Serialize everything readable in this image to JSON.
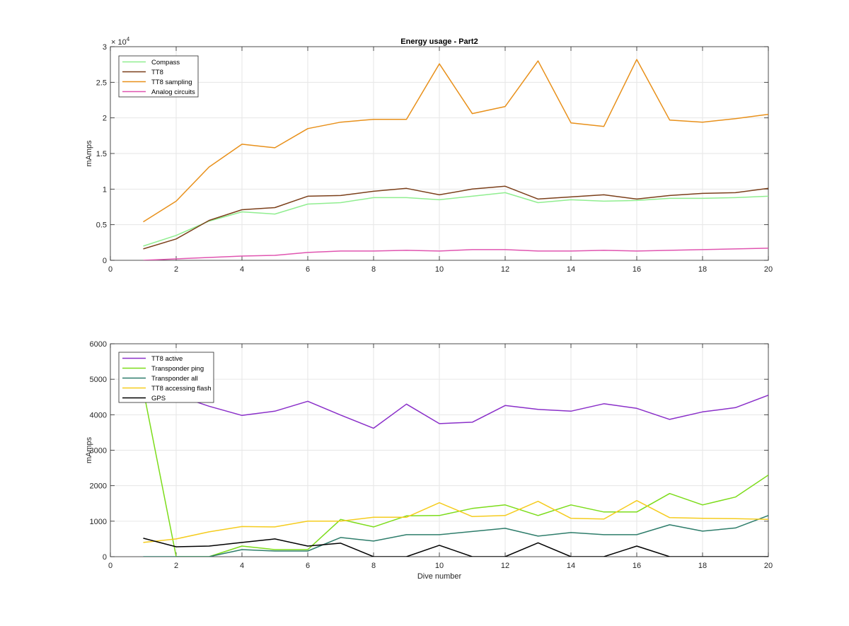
{
  "chart_data": [
    {
      "type": "line",
      "title": "Energy usage - Part2",
      "xlabel": "",
      "ylabel": "mAmps",
      "y_exponent_label": "×10^4",
      "y_exponent_base": "× 10",
      "y_exponent_power": "4",
      "xlim": [
        0,
        20
      ],
      "ylim": [
        0,
        3
      ],
      "xticks": [
        "0",
        "2",
        "4",
        "6",
        "8",
        "10",
        "12",
        "14",
        "16",
        "18",
        "20"
      ],
      "yticks": [
        "0",
        "0.5",
        "1",
        "1.5",
        "2",
        "2.5",
        "3"
      ],
      "grid": true,
      "legend_position": "top-left",
      "x": [
        1,
        2,
        3,
        4,
        5,
        6,
        7,
        8,
        9,
        10,
        11,
        12,
        13,
        14,
        15,
        16,
        17,
        18,
        19,
        20
      ],
      "series": [
        {
          "name": "Compass",
          "color": "#90ee90",
          "values": [
            0.2,
            0.35,
            0.55,
            0.68,
            0.65,
            0.79,
            0.81,
            0.88,
            0.88,
            0.85,
            0.9,
            0.95,
            0.81,
            0.85,
            0.83,
            0.84,
            0.87,
            0.87,
            0.88,
            0.9
          ]
        },
        {
          "name": "TT8",
          "color": "#7b3f1a",
          "values": [
            0.16,
            0.3,
            0.56,
            0.71,
            0.74,
            0.9,
            0.91,
            0.97,
            1.01,
            0.92,
            1.0,
            1.04,
            0.86,
            0.89,
            0.92,
            0.86,
            0.91,
            0.94,
            0.95,
            1.01
          ]
        },
        {
          "name": "TT8 sampling",
          "color": "#e8901a",
          "values": [
            0.54,
            0.83,
            1.31,
            1.63,
            1.58,
            1.85,
            1.94,
            1.98,
            1.98,
            2.76,
            2.06,
            2.16,
            2.8,
            1.93,
            1.88,
            2.82,
            1.97,
            1.94,
            1.99,
            2.05
          ]
        },
        {
          "name": "Analog circuits",
          "color": "#e055b0",
          "values": [
            0.0,
            0.02,
            0.04,
            0.06,
            0.07,
            0.11,
            0.13,
            0.13,
            0.14,
            0.13,
            0.15,
            0.15,
            0.13,
            0.13,
            0.14,
            0.13,
            0.14,
            0.15,
            0.16,
            0.17
          ]
        }
      ]
    },
    {
      "type": "line",
      "title": "",
      "xlabel": "Dive number",
      "ylabel": "mAmps",
      "xlim": [
        0,
        20
      ],
      "ylim": [
        0,
        6000
      ],
      "xticks": [
        "0",
        "2",
        "4",
        "6",
        "8",
        "10",
        "12",
        "14",
        "16",
        "18",
        "20"
      ],
      "yticks": [
        "0",
        "1000",
        "2000",
        "3000",
        "4000",
        "5000",
        "6000"
      ],
      "grid": true,
      "legend_position": "top-left",
      "x": [
        1,
        2,
        3,
        4,
        5,
        6,
        7,
        8,
        9,
        10,
        11,
        12,
        13,
        14,
        15,
        16,
        17,
        18,
        19,
        20
      ],
      "series": [
        {
          "name": "TT8 active",
          "color": "#8a2fc9",
          "values": [
            4700,
            4550,
            4240,
            3980,
            4100,
            4380,
            3990,
            3620,
            4300,
            3750,
            3790,
            4260,
            4150,
            4100,
            4310,
            4180,
            3870,
            4080,
            4200,
            4550
          ]
        },
        {
          "name": "Transponder ping",
          "color": "#7cdc1a",
          "values": [
            4700,
            0,
            0,
            300,
            200,
            200,
            1050,
            840,
            1150,
            1160,
            1360,
            1460,
            1160,
            1460,
            1260,
            1260,
            1780,
            1460,
            1680,
            2300
          ]
        },
        {
          "name": "Transponder all",
          "color": "#2e7d6b",
          "values": [
            0,
            0,
            0,
            200,
            160,
            160,
            540,
            440,
            620,
            620,
            710,
            800,
            580,
            680,
            620,
            620,
            900,
            720,
            810,
            1160
          ]
        },
        {
          "name": "TT8 accessing flash",
          "color": "#f5cc1e",
          "values": [
            400,
            500,
            700,
            850,
            840,
            1000,
            1000,
            1110,
            1110,
            1520,
            1130,
            1160,
            1560,
            1080,
            1060,
            1580,
            1100,
            1080,
            1070,
            1050
          ]
        },
        {
          "name": "GPS",
          "color": "#000000",
          "values": [
            520,
            280,
            300,
            400,
            500,
            300,
            380,
            0,
            0,
            320,
            0,
            0,
            390,
            0,
            0,
            300,
            0,
            0,
            0,
            0
          ]
        }
      ]
    }
  ]
}
